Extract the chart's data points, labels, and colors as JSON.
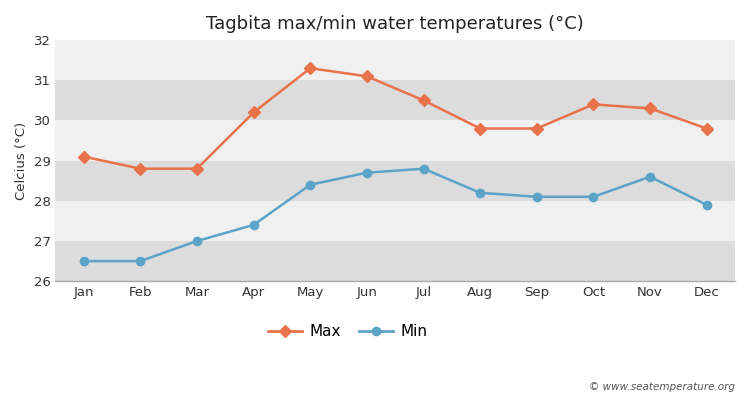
{
  "months": [
    "Jan",
    "Feb",
    "Mar",
    "Apr",
    "May",
    "Jun",
    "Jul",
    "Aug",
    "Sep",
    "Oct",
    "Nov",
    "Dec"
  ],
  "max_temps": [
    29.1,
    28.8,
    28.8,
    30.2,
    31.3,
    31.1,
    30.5,
    29.8,
    29.8,
    30.4,
    30.3,
    29.8
  ],
  "min_temps": [
    26.5,
    26.5,
    27.0,
    27.4,
    28.4,
    28.7,
    28.8,
    28.2,
    28.1,
    28.1,
    28.6,
    27.9
  ],
  "max_color": "#E8724A",
  "min_color": "#5BA3C9",
  "title": "Tagbita max/min water temperatures (°C)",
  "ylabel": "Celcius (°C)",
  "ylim": [
    26,
    32
  ],
  "yticks": [
    26,
    27,
    28,
    29,
    30,
    31,
    32
  ],
  "fig_bg_color": "#ffffff",
  "band_light": "#f0f0f0",
  "band_dark": "#dcdcdc",
  "watermark": "© www.seatemperature.org",
  "legend_max": "Max",
  "legend_min": "Min"
}
